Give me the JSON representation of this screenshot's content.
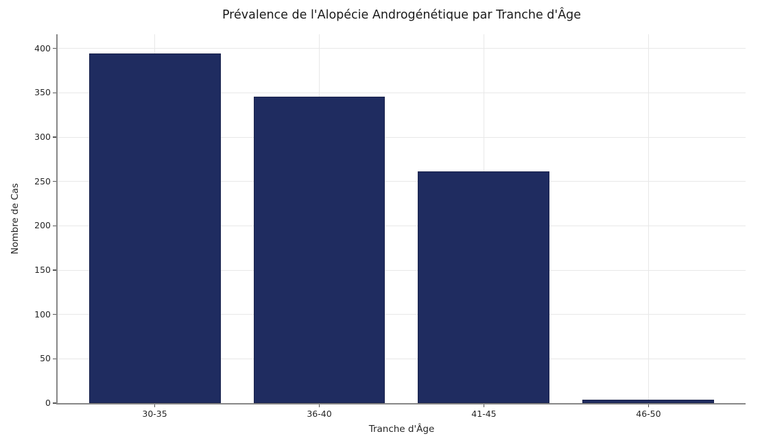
{
  "chart_data": {
    "type": "bar",
    "title": "Prévalence de l'Alopécie Androgénétique par Tranche d'Âge",
    "xlabel": "Tranche d'Âge",
    "ylabel": "Nombre de Cas",
    "categories": [
      "30-35",
      "36-40",
      "41-45",
      "46-50"
    ],
    "values": [
      394,
      346,
      261,
      4
    ],
    "yticks": [
      0,
      50,
      100,
      150,
      200,
      250,
      300,
      350,
      400
    ],
    "ylim": [
      0,
      416
    ],
    "grid": true,
    "legend": "none",
    "colors": {
      "bar_fill": "#1f2c60",
      "bar_edge": "#19224b",
      "grid_line": "#e8e8e8",
      "spine": "#878787",
      "tick_text": "#262626",
      "title_text": "#1a1a1a",
      "background": "#ffffff"
    }
  }
}
